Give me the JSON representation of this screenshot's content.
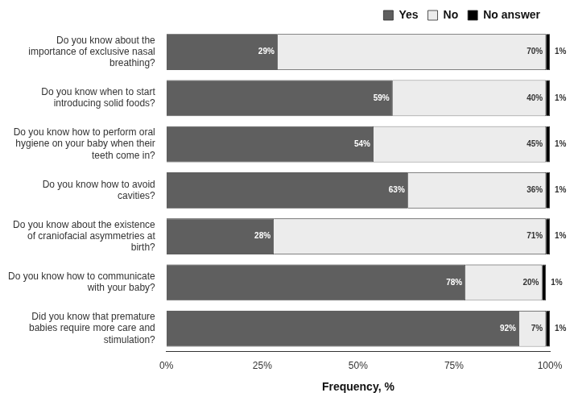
{
  "chart_data": {
    "type": "bar",
    "orientation": "horizontal",
    "stacked": true,
    "data_labels": true,
    "grid": false,
    "legend": "top",
    "x_label": "Frequency, %",
    "categories": [
      "Do you know about the importance of exclusive nasal breathing?",
      "Do you know when to start introducing solid foods?",
      "Do you know how to perform oral hygiene on your baby when their teeth come in?",
      "Do you know how to avoid cavities?",
      "Do you know about the existence of craniofacial asymmetries at birth?",
      "Do you know how to communicate with your baby?",
      "Did you know that premature babies require more care and stimulation?"
    ],
    "series": [
      {
        "name": "Yes",
        "color": "#5f5f5f",
        "values": [
          29,
          59,
          54,
          63,
          28,
          78,
          92
        ],
        "value_labels": [
          "29%",
          "59%",
          "54%",
          "63%",
          "28%",
          "78%",
          "92%"
        ]
      },
      {
        "name": "No",
        "color": "#ececec",
        "values": [
          70,
          40,
          45,
          36,
          71,
          20,
          7
        ],
        "value_labels": [
          "70%",
          "40%",
          "45%",
          "36%",
          "71%",
          "20%",
          "7%"
        ]
      },
      {
        "name": "No answer",
        "color": "#000000",
        "values": [
          1,
          1,
          1,
          1,
          1,
          1,
          1
        ],
        "value_labels": [
          "1%",
          "1%",
          "1%",
          "1%",
          "1%",
          "1%",
          "1%"
        ]
      }
    ],
    "xlim": [
      0,
      100
    ],
    "xticks": [
      {
        "value": 0,
        "label": "0%"
      },
      {
        "value": 25,
        "label": "25%"
      },
      {
        "value": 50,
        "label": "50%"
      },
      {
        "value": 75,
        "label": "75%"
      },
      {
        "value": 100,
        "label": "100%"
      }
    ]
  }
}
